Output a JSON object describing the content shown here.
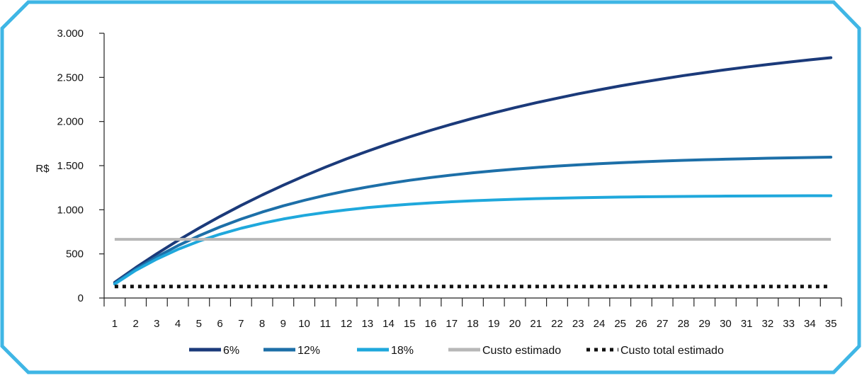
{
  "chart_data": {
    "type": "line",
    "ylabel": "R$",
    "ylim": [
      0,
      3000
    ],
    "yticks": [
      0,
      500,
      1000,
      1500,
      2000,
      2500,
      3000
    ],
    "ytick_labels": [
      "0",
      "500",
      "1.000",
      "1.500",
      "2.000",
      "2.500",
      "3.000"
    ],
    "x": [
      1,
      2,
      3,
      4,
      5,
      6,
      7,
      8,
      9,
      10,
      11,
      12,
      13,
      14,
      15,
      16,
      17,
      18,
      19,
      20,
      21,
      22,
      23,
      24,
      25,
      26,
      27,
      28,
      29,
      30,
      31,
      32,
      33,
      34,
      35
    ],
    "grid": false,
    "legend_position": "bottom",
    "series": [
      {
        "name": "6%",
        "color": "#1b3a7a",
        "style": "solid",
        "values": [
          177,
          344,
          502,
          651,
          791,
          924,
          1049,
          1167,
          1278,
          1383,
          1482,
          1576,
          1664,
          1747,
          1826,
          1900,
          1970,
          2036,
          2098,
          2157,
          2212,
          2264,
          2313,
          2359,
          2403,
          2444,
          2483,
          2520,
          2554,
          2587,
          2617,
          2646,
          2673,
          2699,
          2723
        ]
      },
      {
        "name": "12%",
        "color": "#1d6fa8",
        "style": "solid",
        "values": [
          167,
          327,
          467,
          593,
          705,
          805,
          894,
          974,
          1044,
          1107,
          1164,
          1214,
          1258,
          1298,
          1334,
          1365,
          1393,
          1419,
          1441,
          1461,
          1479,
          1495,
          1509,
          1522,
          1533,
          1543,
          1552,
          1560,
          1567,
          1573,
          1579,
          1584,
          1588,
          1592,
          1596
        ]
      },
      {
        "name": "18%",
        "color": "#1fa8dc",
        "style": "solid",
        "values": [
          158,
          313,
          441,
          551,
          644,
          723,
          790,
          847,
          895,
          936,
          970,
          999,
          1024,
          1045,
          1063,
          1078,
          1091,
          1102,
          1111,
          1119,
          1126,
          1131,
          1136,
          1140,
          1144,
          1147,
          1149,
          1151,
          1153,
          1155,
          1156,
          1157,
          1158,
          1159,
          1159
        ]
      },
      {
        "name": "Custo estimado",
        "color": "#b7b7b7",
        "style": "solid",
        "values": [
          665,
          665,
          665,
          665,
          665,
          665,
          665,
          665,
          665,
          665,
          665,
          665,
          665,
          665,
          665,
          665,
          665,
          665,
          665,
          665,
          665,
          665,
          665,
          665,
          665,
          665,
          665,
          665,
          665,
          665,
          665,
          665,
          665,
          665,
          665
        ]
      },
      {
        "name": "Custo total estimado",
        "color": "#111111",
        "style": "dotted",
        "values": [
          130,
          130,
          130,
          130,
          130,
          130,
          130,
          130,
          130,
          130,
          130,
          130,
          130,
          130,
          130,
          130,
          130,
          130,
          130,
          130,
          130,
          130,
          130,
          130,
          130,
          130,
          130,
          130,
          130,
          130,
          130,
          130,
          130,
          130,
          130
        ]
      }
    ]
  },
  "frame_color": "#3fb6e5"
}
